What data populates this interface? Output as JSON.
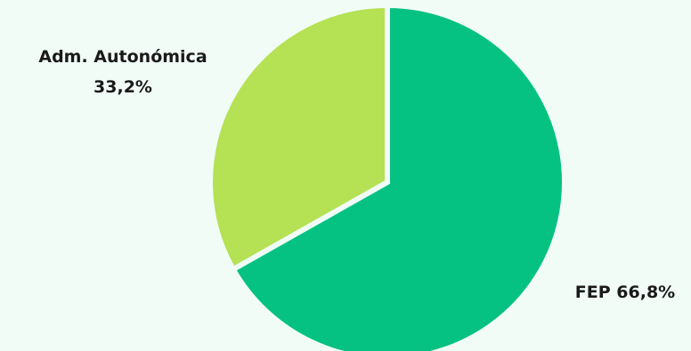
{
  "chart_data": {
    "type": "pie",
    "title": "",
    "slices": [
      {
        "label": "FEP",
        "display": "FEP 66,8%",
        "value": 66.8,
        "color": "#06c282"
      },
      {
        "label": "Adm. Autonómica",
        "display_lines": [
          "Adm. Autonómica",
          "33,2%"
        ],
        "value": 33.2,
        "color": "#b5e154"
      }
    ],
    "background": "#f1fcf7",
    "slice_border_color": "#f1fcf7"
  }
}
